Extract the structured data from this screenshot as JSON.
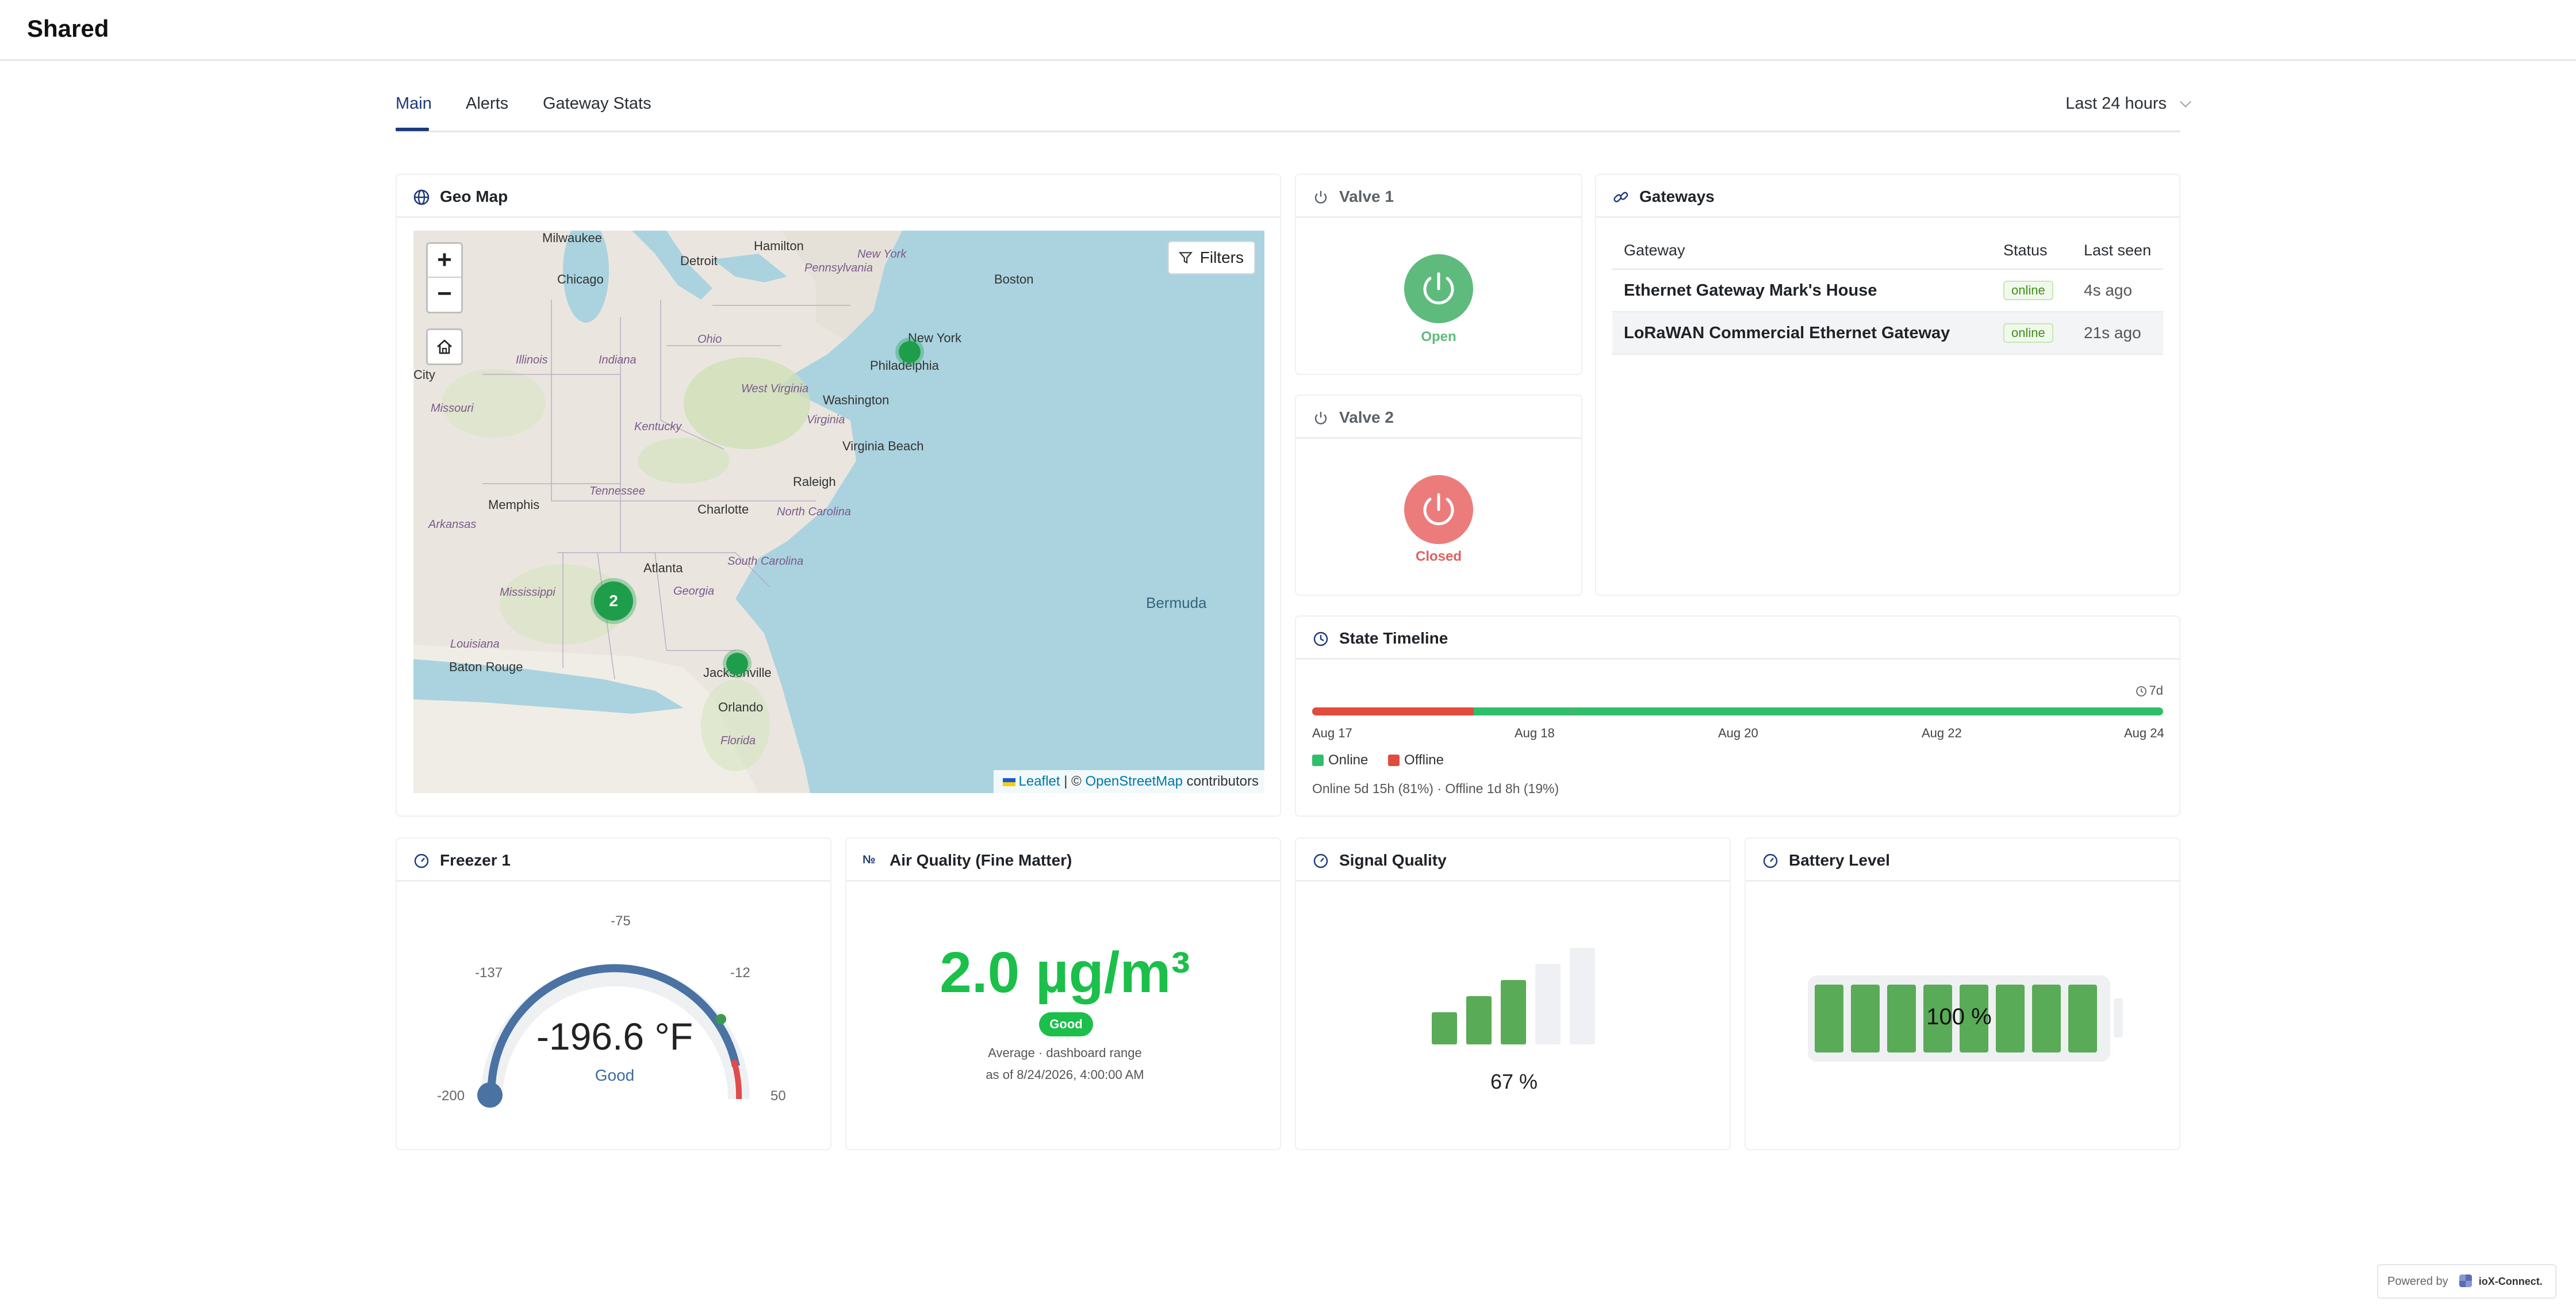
{
  "app": {
    "title": "Shared"
  },
  "tabs": [
    {
      "label": "Main",
      "active": true
    },
    {
      "label": "Alerts"
    },
    {
      "label": "Gateway Stats"
    }
  ],
  "time_range": {
    "value": "Last 24 hours"
  },
  "geo_map": {
    "title": "Geo Map",
    "filters_label": "Filters",
    "zoom_in": "+",
    "zoom_out": "−",
    "attribution": {
      "leaflet": "Leaflet",
      "sep": " | © ",
      "osm": "OpenStreetMap",
      "suffix": " contributors"
    },
    "cluster_count": "2",
    "labels": [
      "Milwaukee",
      "Hamilton",
      "Detroit",
      "New York",
      "Boston",
      "Chicago",
      "Pennsylvania",
      "New York",
      "Philadelphia",
      "Ohio",
      "Indiana",
      "Illinois",
      "West Virginia",
      "Washington",
      "Virginia",
      "Kentucky",
      "Missouri",
      "City",
      "Virginia Beach",
      "Raleigh",
      "Tennessee",
      "Charlotte",
      "North Carolina",
      "Memphis",
      "Arkansas",
      "South Carolina",
      "Atlanta",
      "Georgia",
      "Mississippi",
      "Bermuda",
      "Louisiana",
      "Baton Rouge",
      "Jacksonville",
      "Orlando",
      "Florida"
    ]
  },
  "valve1": {
    "title": "Valve 1",
    "state": "Open",
    "color": "#5fba7d"
  },
  "valve2": {
    "title": "Valve 2",
    "state": "Closed",
    "color": "#ec7c7c"
  },
  "gateways": {
    "title": "Gateways",
    "columns": [
      "Gateway",
      "Status",
      "Last seen"
    ],
    "rows": [
      {
        "name": "Ethernet Gateway Mark's House",
        "status": "online",
        "last_seen": "4s ago"
      },
      {
        "name": "LoRaWAN Commercial Ethernet Gateway",
        "status": "online",
        "last_seen": "21s ago"
      }
    ]
  },
  "state_timeline": {
    "title": "State Timeline",
    "range_label": "7d",
    "axis_labels": [
      "Aug 17",
      "Aug 18",
      "Aug 20",
      "Aug 22",
      "Aug 24"
    ],
    "legend": [
      {
        "label": "Online",
        "color": "#2fbf6a"
      },
      {
        "label": "Offline",
        "color": "#e04b3c"
      }
    ],
    "offline_fraction_start": 0.19,
    "summary": "Online 5d 15h (81%) · Offline 1d 8h (19%)"
  },
  "freezer": {
    "title": "Freezer 1",
    "value": "-196.6 °F",
    "status": "Good",
    "ticks": [
      "-200",
      "-137",
      "-75",
      "-12",
      "50"
    ],
    "range": [
      -200,
      50
    ],
    "reading": -196.6
  },
  "air_quality": {
    "title": "Air Quality (Fine Matter)",
    "value": "2.0 µg/m³",
    "badge": "Good",
    "sub1": "Average · dashboard range",
    "sub2": "as of 8/24/2026, 4:00:00 AM"
  },
  "signal": {
    "title": "Signal Quality",
    "value": "67 %",
    "bars_filled": 3,
    "bars_total": 5
  },
  "battery": {
    "title": "Battery Level",
    "value": "100 %",
    "cells_filled": 8,
    "cells_total": 8
  },
  "footer": {
    "powered_by": "Powered by",
    "brand": "ioX-Connect."
  }
}
